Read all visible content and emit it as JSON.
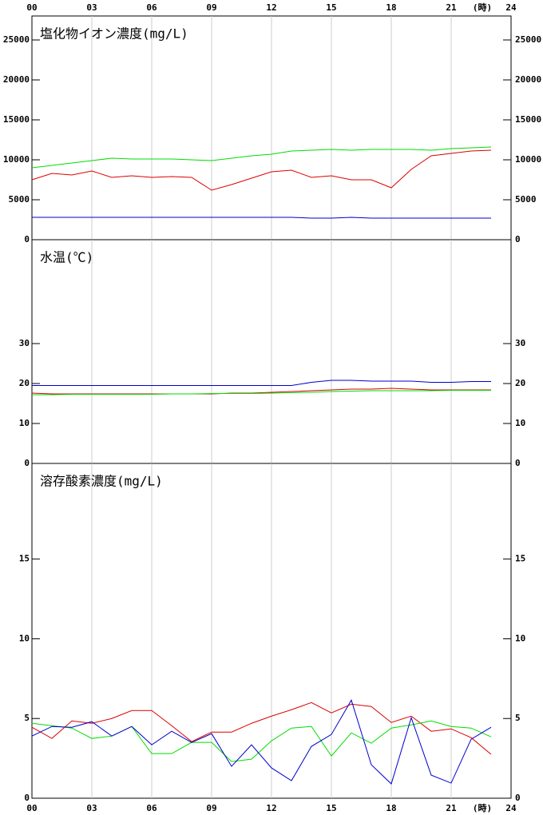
{
  "chart_data": [
    {
      "type": "line",
      "title": "塩化物イオン濃度(mg/L)",
      "x": [
        0,
        1,
        2,
        3,
        4,
        5,
        6,
        7,
        8,
        9,
        10,
        11,
        12,
        13,
        14,
        15,
        16,
        17,
        18,
        19,
        20,
        21,
        22,
        23
      ],
      "xlim": [
        0,
        24
      ],
      "xticks": [
        {
          "value": 0,
          "label": "00"
        },
        {
          "value": 3,
          "label": "03"
        },
        {
          "value": 6,
          "label": "06"
        },
        {
          "value": 9,
          "label": "09"
        },
        12,
        15,
        18,
        21,
        24
      ],
      "x_label": "(時)",
      "ylim": [
        0,
        28000
      ],
      "yticks": [
        0,
        5000,
        10000,
        15000,
        20000,
        25000
      ],
      "grid": true,
      "series": [
        {
          "color": "#dd0000",
          "values": [
            7500,
            8300,
            8100,
            8600,
            7800,
            8000,
            7800,
            7900,
            7800,
            6200,
            6900,
            7700,
            8500,
            8700,
            7800,
            8000,
            7500,
            7500,
            6500,
            8800,
            10500,
            10800,
            11100,
            11200
          ]
        },
        {
          "color": "#00dd00",
          "values": [
            9000,
            9300,
            9600,
            9900,
            10200,
            10100,
            10100,
            10100,
            10000,
            9900,
            10200,
            10500,
            10700,
            11100,
            11200,
            11300,
            11200,
            11300,
            11300,
            11300,
            11200,
            11400,
            11500,
            11600
          ]
        },
        {
          "color": "#0000cc",
          "values": [
            2800,
            2800,
            2800,
            2800,
            2800,
            2800,
            2800,
            2800,
            2800,
            2800,
            2800,
            2800,
            2800,
            2800,
            2700,
            2700,
            2800,
            2700,
            2700,
            2700,
            2700,
            2700,
            2700,
            2700
          ]
        }
      ]
    },
    {
      "type": "line",
      "title": "水温(℃)",
      "x": [
        0,
        1,
        2,
        3,
        4,
        5,
        6,
        7,
        8,
        9,
        10,
        11,
        12,
        13,
        14,
        15,
        16,
        17,
        18,
        19,
        20,
        21,
        22,
        23
      ],
      "xlim": [
        0,
        24
      ],
      "xticks": [
        0,
        3,
        6,
        9,
        12,
        15,
        18,
        21,
        24
      ],
      "ylim": [
        0,
        56
      ],
      "yticks": [
        0,
        10,
        20,
        30
      ],
      "grid": true,
      "series": [
        {
          "color": "#0000cc",
          "values": [
            19.5,
            19.5,
            19.5,
            19.5,
            19.5,
            19.5,
            19.5,
            19.5,
            19.5,
            19.5,
            19.5,
            19.5,
            19.5,
            19.5,
            20.3,
            20.8,
            20.8,
            20.6,
            20.6,
            20.6,
            20.3,
            20.3,
            20.5,
            20.5
          ]
        },
        {
          "color": "#dd0000",
          "values": [
            17.6,
            17.4,
            17.4,
            17.4,
            17.4,
            17.4,
            17.4,
            17.4,
            17.4,
            17.4,
            17.6,
            17.6,
            17.8,
            18,
            18.2,
            18.4,
            18.6,
            18.6,
            18.8,
            18.6,
            18.4,
            18.4,
            18.4,
            18.4
          ]
        },
        {
          "color": "#00dd00",
          "values": [
            17.2,
            17.2,
            17.3,
            17.3,
            17.3,
            17.3,
            17.3,
            17.4,
            17.4,
            17.5,
            17.5,
            17.5,
            17.6,
            17.7,
            17.8,
            18,
            18.1,
            18.2,
            18.2,
            18.2,
            18.2,
            18.3,
            18.3,
            18.3
          ]
        }
      ]
    },
    {
      "type": "line",
      "title": "溶存酸素濃度(mg/L)",
      "x": [
        0,
        1,
        2,
        3,
        4,
        5,
        6,
        7,
        8,
        9,
        10,
        11,
        12,
        13,
        14,
        15,
        16,
        17,
        18,
        19,
        20,
        21,
        22,
        23
      ],
      "xlim": [
        0,
        24
      ],
      "xticks": [
        {
          "value": 0,
          "label": "00"
        },
        {
          "value": 3,
          "label": "03"
        },
        {
          "value": 6,
          "label": "06"
        },
        {
          "value": 9,
          "label": "09"
        },
        12,
        15,
        18,
        21,
        24
      ],
      "x_label": "(時)",
      "ylim": [
        0,
        21
      ],
      "yticks": [
        0,
        5,
        10,
        15
      ],
      "grid": true,
      "series": [
        {
          "color": "#dd0000",
          "values": [
            4.45,
            3.75,
            4.85,
            4.7,
            5.0,
            5.5,
            5.5,
            4.55,
            3.55,
            4.15,
            4.15,
            4.7,
            5.15,
            5.55,
            6.0,
            5.35,
            5.9,
            5.75,
            4.75,
            5.15,
            4.2,
            4.35,
            3.8,
            2.75
          ]
        },
        {
          "color": "#00dd00",
          "values": [
            4.7,
            4.55,
            4.4,
            3.75,
            3.9,
            4.5,
            2.8,
            2.8,
            3.5,
            3.5,
            2.3,
            2.45,
            3.6,
            4.4,
            4.5,
            2.65,
            4.1,
            3.45,
            4.4,
            4.6,
            4.85,
            4.5,
            4.4,
            3.85
          ]
        },
        {
          "color": "#0000cc",
          "values": [
            3.9,
            4.5,
            4.45,
            4.8,
            3.9,
            4.5,
            3.35,
            4.2,
            3.5,
            4.05,
            2.0,
            3.35,
            1.9,
            1.1,
            3.25,
            4.0,
            6.15,
            2.1,
            0.9,
            5.05,
            1.45,
            0.95,
            3.7,
            4.45
          ]
        }
      ]
    }
  ]
}
